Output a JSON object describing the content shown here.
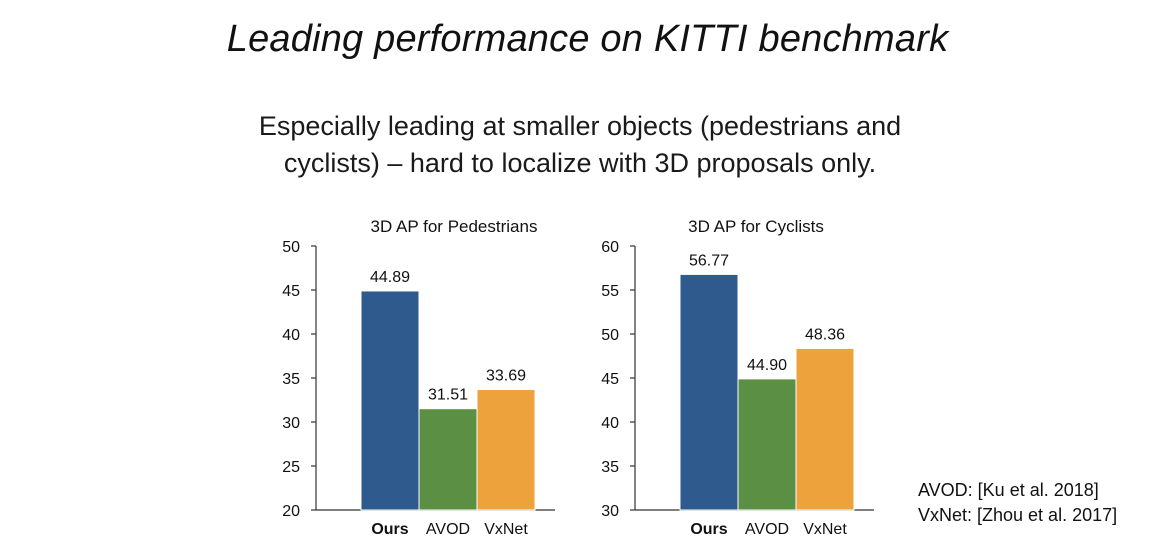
{
  "slide": {
    "title": "Leading performance on KITTI benchmark",
    "subtitle_lines": [
      "Especially leading at smaller objects (pedestrians and",
      "cyclists) – hard to localize with 3D proposals only."
    ],
    "references": [
      "AVOD: [Ku et al. 2018]",
      "VxNet: [Zhou et al. 2017]"
    ]
  },
  "colors": {
    "Ours": "#2e5a8e",
    "AVOD": "#5b8f44",
    "VxNet": "#eda23c",
    "axis": "#333333"
  },
  "chart_data": [
    {
      "type": "bar",
      "title": "3D AP for Pedestrians",
      "categories": [
        "Ours",
        "AVOD",
        "VxNet"
      ],
      "values": [
        44.89,
        31.51,
        33.69
      ],
      "value_labels": [
        "44.89",
        "31.51",
        "33.69"
      ],
      "bold_category": "Ours",
      "ylim": [
        20,
        50
      ],
      "yticks": [
        20,
        25,
        30,
        35,
        40,
        45,
        50
      ],
      "xlabel": "",
      "ylabel": "",
      "grid": false,
      "legend": false
    },
    {
      "type": "bar",
      "title": "3D AP for Cyclists",
      "categories": [
        "Ours",
        "AVOD",
        "VxNet"
      ],
      "values": [
        56.77,
        44.9,
        48.36
      ],
      "value_labels": [
        "56.77",
        "44.90",
        "48.36"
      ],
      "bold_category": "Ours",
      "ylim": [
        30,
        60
      ],
      "yticks": [
        30,
        35,
        40,
        45,
        50,
        55,
        60
      ],
      "xlabel": "",
      "ylabel": "",
      "grid": false,
      "legend": false
    }
  ]
}
